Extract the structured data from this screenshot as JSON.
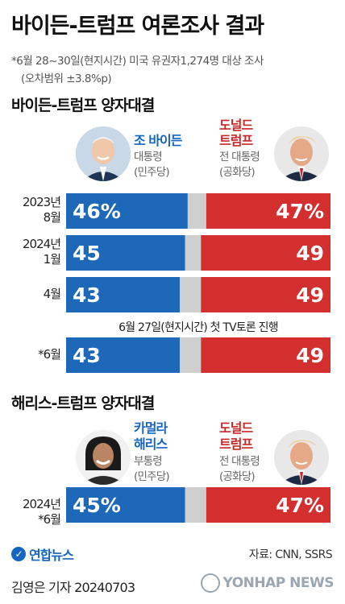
{
  "title": "바이든-트럼프 여론조사 결과",
  "note_line1": "*6월 28~30일(현지시간) 미국 유권자1,274명 대상 조사",
  "note_line2": "(오차범위 ±3.8%p)",
  "section1": {
    "title": "바이든-트럼프 양자대결",
    "left_candidate": {
      "name_line1": "조 바이든",
      "role_line1": "대통령",
      "role_line2": "(민주당)"
    },
    "right_candidate": {
      "name_line1": "도널드",
      "name_line2": "트럼프",
      "role_line1": "전 대통령",
      "role_line2": "(공화당)"
    }
  },
  "event_note": "6월 27일(현지시간) 첫 TV토론 진행",
  "section2": {
    "title": "해리스-트럼프 양자대결",
    "left_candidate": {
      "name_line1": "카멀라",
      "name_line2": "해리스",
      "role_line1": "부통령",
      "role_line2": "(민주당)"
    },
    "right_candidate": {
      "name_line1": "도널드",
      "name_line2": "트럼프",
      "role_line1": "전 대통령",
      "role_line2": "(공화당)"
    }
  },
  "footer": {
    "logo": "연합뉴스",
    "source": "자료: CNN, SSRS",
    "author": "김영은 기자  20240703",
    "watermark": "YONHAP NEWS"
  },
  "chart_data": {
    "type": "bar",
    "orientation": "horizontal-stacked",
    "scale_max": 100,
    "colors": {
      "left": "#1d68b8",
      "undecided": "#cfcfcf",
      "right": "#d32f2f"
    },
    "rows": [
      {
        "label_line1": "2023년",
        "label_line2": "8월",
        "left": 46,
        "right": 47,
        "left_label": "46%",
        "right_label": "47%"
      },
      {
        "label_line1": "2024년",
        "label_line2": "1월",
        "left": 45,
        "right": 49,
        "left_label": "45",
        "right_label": "49"
      },
      {
        "label_line1": "4월",
        "label_line2": "",
        "left": 43,
        "right": 49,
        "left_label": "43",
        "right_label": "49"
      },
      {
        "label_line1": "*6월",
        "label_line2": "",
        "left": 43,
        "right": 49,
        "left_label": "43",
        "right_label": "49"
      },
      {
        "label_line1": "2024년",
        "label_line2": "*6월",
        "left": 45,
        "right": 47,
        "left_label": "45%",
        "right_label": "47%"
      }
    ]
  }
}
